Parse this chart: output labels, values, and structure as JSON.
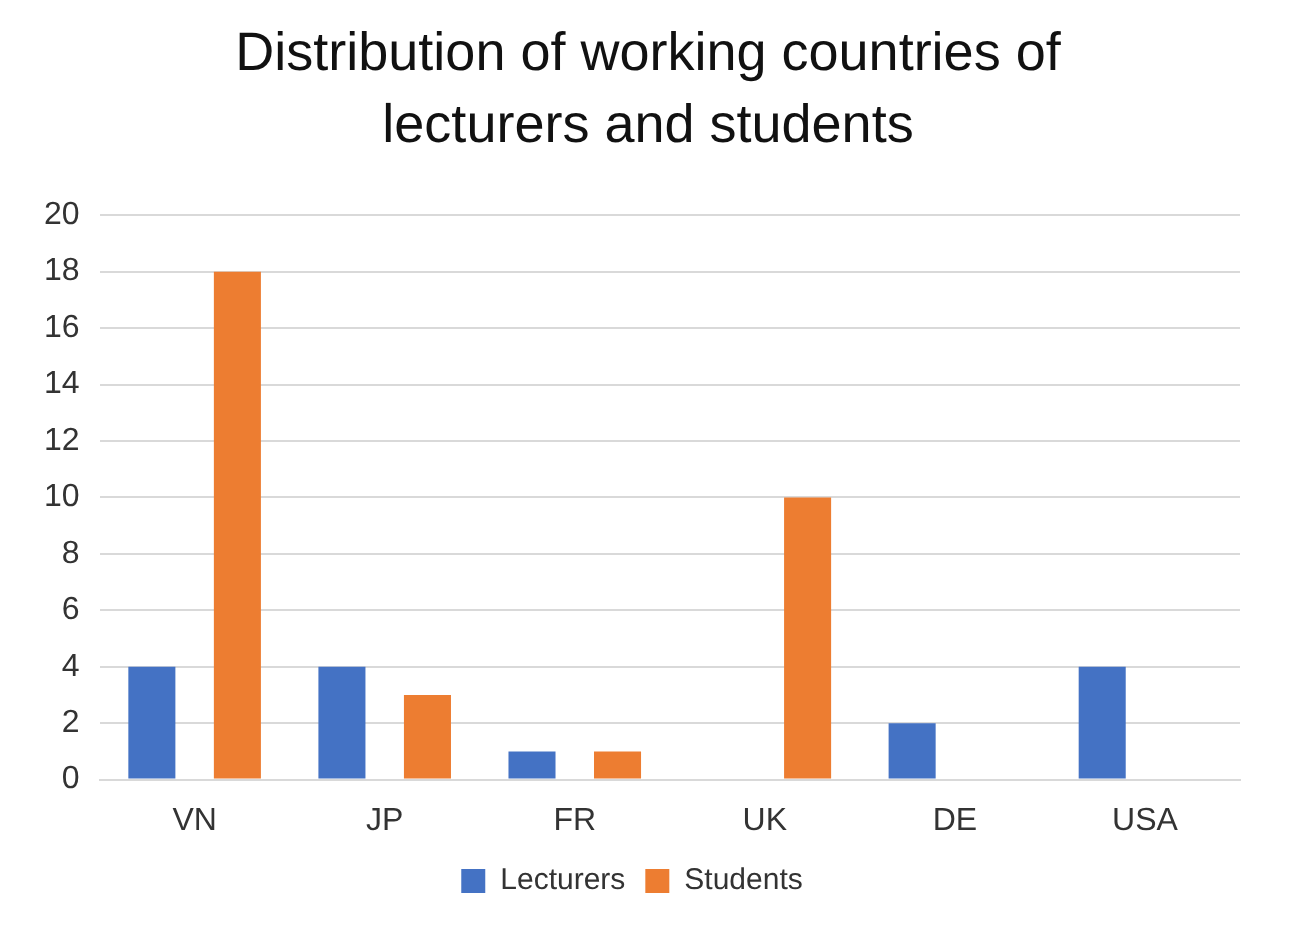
{
  "chart_data": {
    "type": "bar",
    "title": "Distribution of working countries of lecturers and students",
    "categories": [
      "VN",
      "JP",
      "FR",
      "UK",
      "DE",
      "USA"
    ],
    "series": [
      {
        "name": "Lecturers",
        "color": "#4472c4",
        "values": [
          4,
          4,
          1,
          0,
          2,
          4
        ]
      },
      {
        "name": "Students",
        "color": "#ed7d31",
        "values": [
          18,
          3,
          1,
          10,
          0,
          0
        ]
      }
    ],
    "ylim": [
      0,
      20
    ],
    "yticks": [
      0,
      2,
      4,
      6,
      8,
      10,
      12,
      14,
      16,
      18,
      20
    ],
    "grid": "y",
    "legend": "bottom"
  }
}
